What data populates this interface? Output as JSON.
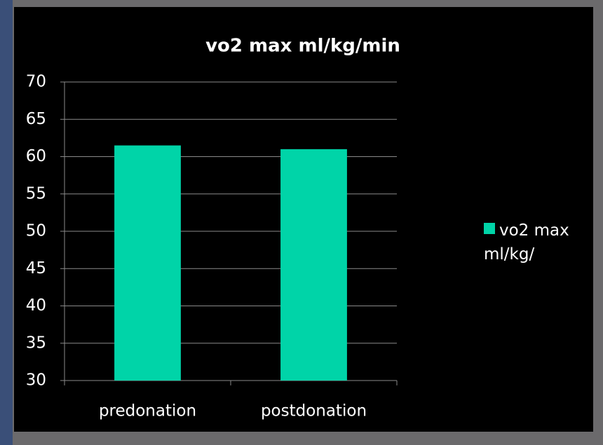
{
  "chart_data": {
    "type": "bar",
    "title": "vo2 max ml/kg/min",
    "categories": [
      "predonation",
      "postdonation"
    ],
    "series": [
      {
        "name": "vo2 max ml/kg/",
        "color": "#00d4a8",
        "values": [
          61.5,
          61.0
        ]
      }
    ],
    "ylim": [
      30,
      70
    ],
    "yticks": [
      30,
      35,
      40,
      45,
      50,
      55,
      60,
      65,
      70
    ],
    "grid": true,
    "legend": "right"
  }
}
